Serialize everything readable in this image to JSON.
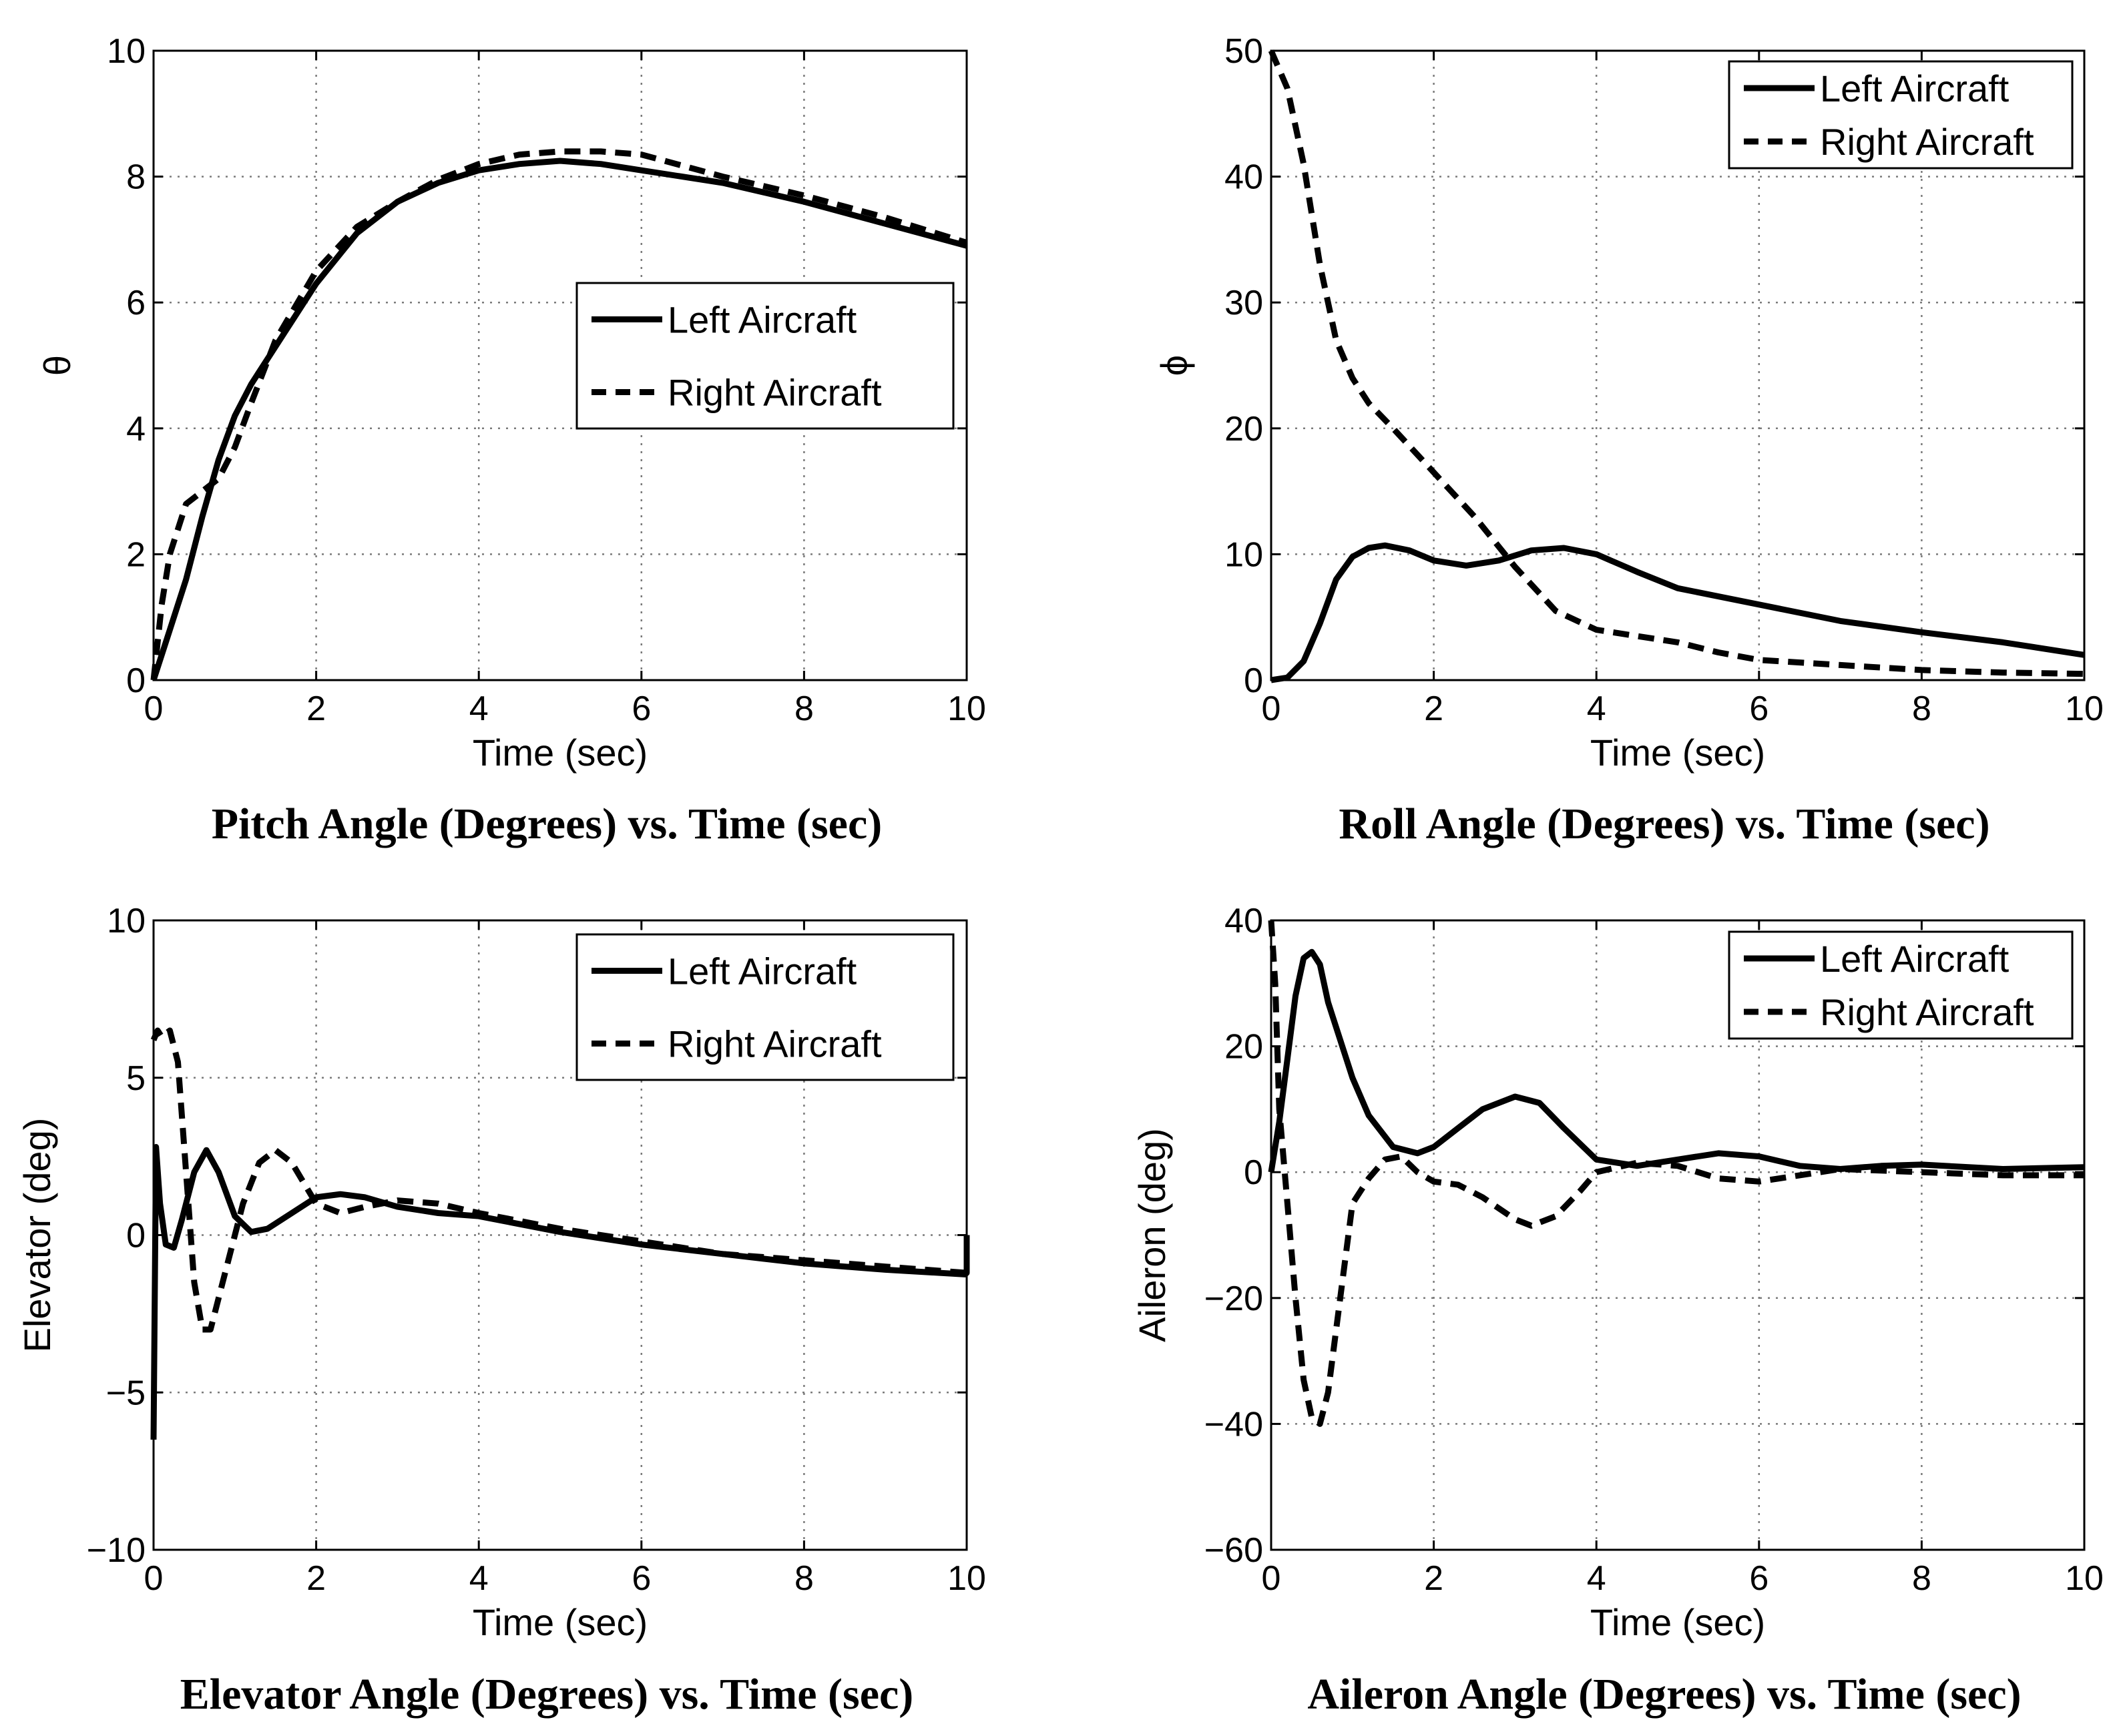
{
  "chart_data": [
    {
      "type": "line",
      "title": "Pitch Angle (Degrees) vs. Time (sec)",
      "xlabel": "Time (sec)",
      "ylabel": "θ",
      "xlim": [
        0,
        10
      ],
      "ylim": [
        0,
        10
      ],
      "xticks": [
        "0",
        "2",
        "4",
        "6",
        "8",
        "10"
      ],
      "yticks": [
        "0",
        "2",
        "4",
        "6",
        "8",
        "10"
      ],
      "grid": true,
      "legend": "center-right",
      "series": [
        {
          "name": "Left Aircraft",
          "style": "solid",
          "x": [
            0,
            0.2,
            0.4,
            0.6,
            0.8,
            1.0,
            1.2,
            1.5,
            2.0,
            2.5,
            3.0,
            3.5,
            4.0,
            4.5,
            5.0,
            5.5,
            6.0,
            7.0,
            8.0,
            9.0,
            10.0
          ],
          "y": [
            0,
            0.8,
            1.6,
            2.6,
            3.5,
            4.2,
            4.7,
            5.3,
            6.3,
            7.1,
            7.6,
            7.9,
            8.1,
            8.2,
            8.25,
            8.2,
            8.1,
            7.9,
            7.6,
            7.25,
            6.9
          ]
        },
        {
          "name": "Right Aircraft",
          "style": "dashed",
          "x": [
            0,
            0.1,
            0.2,
            0.4,
            0.6,
            0.8,
            1.0,
            1.2,
            1.5,
            2.0,
            2.5,
            3.0,
            3.5,
            4.0,
            4.5,
            5.0,
            5.5,
            6.0,
            7.0,
            8.0,
            9.0,
            10.0
          ],
          "y": [
            0,
            1.2,
            2.0,
            2.8,
            3.0,
            3.2,
            3.7,
            4.4,
            5.4,
            6.5,
            7.2,
            7.6,
            7.95,
            8.2,
            8.35,
            8.4,
            8.4,
            8.35,
            8.0,
            7.7,
            7.35,
            6.95
          ]
        }
      ]
    },
    {
      "type": "line",
      "title": "Roll Angle (Degrees) vs. Time (sec)",
      "xlabel": "Time (sec)",
      "ylabel": "ϕ",
      "xlim": [
        0,
        10
      ],
      "ylim": [
        0,
        50
      ],
      "xticks": [
        "0",
        "2",
        "4",
        "6",
        "8",
        "10"
      ],
      "yticks": [
        "0",
        "10",
        "20",
        "30",
        "40",
        "50"
      ],
      "grid": true,
      "legend": "top-right",
      "series": [
        {
          "name": "Left Aircraft",
          "style": "solid",
          "x": [
            0,
            0.2,
            0.4,
            0.6,
            0.8,
            1.0,
            1.2,
            1.4,
            1.7,
            2.0,
            2.4,
            2.8,
            3.2,
            3.6,
            4.0,
            4.5,
            5.0,
            6.0,
            7.0,
            8.0,
            9.0,
            10.0
          ],
          "y": [
            0,
            0.2,
            1.5,
            4.5,
            8.0,
            9.8,
            10.5,
            10.7,
            10.3,
            9.5,
            9.1,
            9.5,
            10.3,
            10.5,
            10.0,
            8.6,
            7.3,
            6.0,
            4.7,
            3.8,
            3.0,
            2.0
          ]
        },
        {
          "name": "Right Aircraft",
          "style": "dashed",
          "x": [
            0,
            0.2,
            0.4,
            0.6,
            0.8,
            1.0,
            1.2,
            1.5,
            2.0,
            2.5,
            3.0,
            3.5,
            4.0,
            4.5,
            5.0,
            5.5,
            6.0,
            7.0,
            8.0,
            9.0,
            10.0
          ],
          "y": [
            50,
            47,
            41,
            33,
            27,
            24,
            22,
            20,
            16.5,
            13,
            9,
            5.5,
            4,
            3.5,
            3,
            2.2,
            1.6,
            1.2,
            0.8,
            0.6,
            0.5
          ]
        }
      ]
    },
    {
      "type": "line",
      "title": "Elevator Angle (Degrees) vs. Time (sec)",
      "xlabel": "Time (sec)",
      "ylabel": "Elevator (deg)",
      "xlim": [
        0,
        10
      ],
      "ylim": [
        -10,
        10
      ],
      "xticks": [
        "0",
        "2",
        "4",
        "6",
        "8",
        "10"
      ],
      "yticks": [
        "−10",
        "−5",
        "0",
        "5",
        "10"
      ],
      "grid": true,
      "legend": "top-right",
      "series": [
        {
          "name": "Left Aircraft",
          "style": "solid",
          "x": [
            0,
            0.03,
            0.08,
            0.15,
            0.25,
            0.35,
            0.5,
            0.65,
            0.8,
            1.0,
            1.2,
            1.4,
            1.7,
            2.0,
            2.3,
            2.6,
            3.0,
            3.5,
            4.0,
            5.0,
            6.0,
            7.0,
            8.0,
            9.0,
            9.98,
            10.0,
            10.0
          ],
          "y": [
            -6.5,
            2.8,
            1.0,
            -0.3,
            -0.4,
            0.5,
            2.0,
            2.7,
            2.0,
            0.6,
            0.1,
            0.2,
            0.7,
            1.2,
            1.3,
            1.2,
            0.9,
            0.7,
            0.6,
            0.1,
            -0.3,
            -0.6,
            -0.9,
            -1.1,
            -1.25,
            -1.2,
            0.0
          ]
        },
        {
          "name": "Right Aircraft",
          "style": "dashed",
          "x": [
            0,
            0.05,
            0.1,
            0.2,
            0.3,
            0.4,
            0.5,
            0.6,
            0.7,
            0.9,
            1.1,
            1.3,
            1.5,
            1.7,
            2.0,
            2.3,
            2.6,
            3.0,
            3.5,
            4.0,
            5.0,
            6.0,
            7.0,
            8.0,
            9.0,
            10.0
          ],
          "y": [
            6.2,
            6.5,
            6.3,
            6.5,
            5.5,
            2.0,
            -1.5,
            -3.0,
            -3.0,
            -1.0,
            1.0,
            2.3,
            2.7,
            2.3,
            1.0,
            0.7,
            0.9,
            1.1,
            1.0,
            0.7,
            0.2,
            -0.2,
            -0.6,
            -0.8,
            -1.0,
            -1.2
          ]
        }
      ]
    },
    {
      "type": "line",
      "title": "Aileron Angle (Degrees) vs. Time (sec)",
      "xlabel": "Time (sec)",
      "ylabel": "Aileron (deg)",
      "xlim": [
        0,
        10
      ],
      "ylim": [
        -60,
        40
      ],
      "xticks": [
        "0",
        "2",
        "4",
        "6",
        "8",
        "10"
      ],
      "yticks": [
        "−60",
        "−40",
        "−20",
        "0",
        "20",
        "40"
      ],
      "grid": true,
      "legend": "top-right",
      "series": [
        {
          "name": "Left Aircraft",
          "style": "solid",
          "x": [
            0,
            0.1,
            0.2,
            0.3,
            0.4,
            0.5,
            0.6,
            0.7,
            0.8,
            0.9,
            1.0,
            1.2,
            1.5,
            1.8,
            2.0,
            2.3,
            2.6,
            3.0,
            3.3,
            3.6,
            4.0,
            4.5,
            5.0,
            5.5,
            6.0,
            6.5,
            7.0,
            7.5,
            8.0,
            9.0,
            10.0
          ],
          "y": [
            0,
            8,
            18,
            28,
            34,
            35,
            33,
            27,
            23,
            19,
            15,
            9,
            4,
            3,
            4,
            7,
            10,
            12,
            11,
            7,
            2,
            1,
            2,
            3,
            2.5,
            1.0,
            0.5,
            1.0,
            1.2,
            0.5,
            0.8
          ]
        },
        {
          "name": "Right Aircraft",
          "style": "dashed",
          "x": [
            0,
            0.05,
            0.1,
            0.2,
            0.3,
            0.4,
            0.5,
            0.6,
            0.7,
            0.8,
            0.9,
            1.0,
            1.2,
            1.4,
            1.6,
            1.8,
            2.0,
            2.3,
            2.6,
            3.0,
            3.2,
            3.5,
            3.8,
            4.0,
            4.5,
            5.0,
            5.5,
            6.0,
            6.5,
            7.0,
            8.0,
            9.0,
            10.0
          ],
          "y": [
            40,
            30,
            10,
            -5,
            -20,
            -33,
            -39,
            -40,
            -35,
            -25,
            -15,
            -5,
            -1,
            2,
            2.5,
            0,
            -1.5,
            -2,
            -4,
            -7.5,
            -8.5,
            -7,
            -3,
            0,
            1.5,
            1.0,
            -1.0,
            -1.5,
            -0.5,
            0.5,
            0,
            -0.5,
            -0.5
          ]
        }
      ]
    }
  ]
}
